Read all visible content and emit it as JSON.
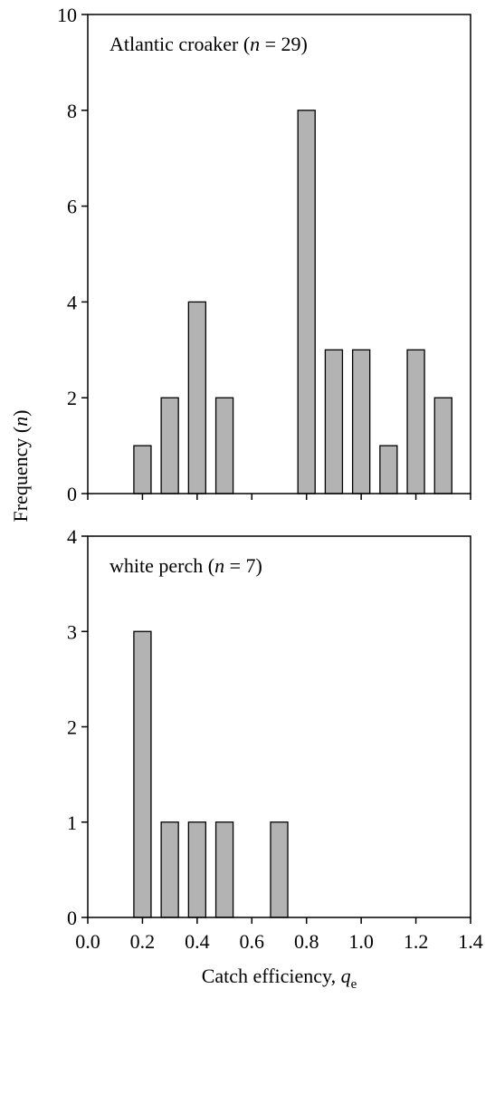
{
  "chart_data": [
    {
      "type": "bar",
      "x": [
        0.2,
        0.3,
        0.4,
        0.5,
        0.8,
        0.9,
        1.0,
        1.1,
        1.2,
        1.3
      ],
      "values": [
        1,
        2,
        4,
        2,
        8,
        3,
        3,
        1,
        3,
        2
      ],
      "color": "#b3b3b3",
      "xlim": [
        0,
        1.4
      ],
      "ylim": [
        0,
        10
      ],
      "yticks": [
        0,
        2,
        4,
        6,
        8,
        10
      ],
      "annotation": {
        "before": "Atlantic croaker (",
        "italic": "n",
        "after": " = 29)"
      },
      "y_label": {
        "before": "Frequency (",
        "italic": "n",
        "after": ")"
      }
    },
    {
      "type": "bar",
      "x": [
        0.2,
        0.3,
        0.4,
        0.5,
        0.7
      ],
      "values": [
        3,
        1,
        1,
        1,
        1
      ],
      "color": "#b3b3b3",
      "xlim": [
        0,
        1.4
      ],
      "ylim": [
        0,
        4
      ],
      "yticks": [
        0,
        1,
        2,
        3,
        4
      ],
      "xticks": [
        {
          "value": 0,
          "label": "0.0"
        },
        0.2,
        0.4,
        0.6,
        0.8,
        {
          "value": 1,
          "label": "1.0"
        },
        1.2,
        1.4
      ],
      "annotation": {
        "before": "white perch (",
        "italic": "n",
        "after": " = 7)"
      },
      "x_label": {
        "before": "Catch efficiency, ",
        "italic": "q",
        "subscript": "e"
      }
    }
  ]
}
